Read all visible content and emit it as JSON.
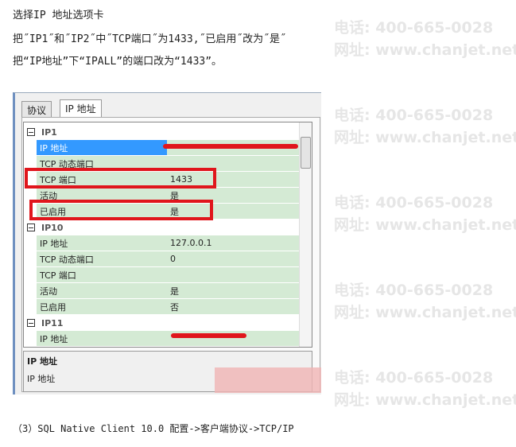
{
  "instructions": [
    "选择IP 地址选项卡",
    "把˝IP1˝和˝IP2˝中˝TCP端口˝为1433,˝已启用˝改为˝是˝",
    "把“IP地址”下“IPALL”的端口改为“1433”。"
  ],
  "tabs": [
    {
      "label": "协议"
    },
    {
      "label": "IP 地址",
      "active": true
    }
  ],
  "groups": [
    {
      "name": "IP1",
      "rows": [
        {
          "k": "IP 地址",
          "v": ""
        },
        {
          "k": "TCP 动态端口",
          "v": ""
        },
        {
          "k": "TCP 端口",
          "v": "1433"
        },
        {
          "k": "活动",
          "v": "是"
        },
        {
          "k": "已启用",
          "v": "是"
        }
      ]
    },
    {
      "name": "IP10",
      "rows": [
        {
          "k": "IP 地址",
          "v": "127.0.0.1"
        },
        {
          "k": "TCP 动态端口",
          "v": "0"
        },
        {
          "k": "TCP 端口",
          "v": ""
        },
        {
          "k": "活动",
          "v": "是"
        },
        {
          "k": "已启用",
          "v": "否"
        }
      ]
    },
    {
      "name": "IP11",
      "rows": [
        {
          "k": "IP 地址",
          "v": ""
        }
      ]
    }
  ],
  "description": {
    "title": "IP 地址",
    "text": "IP 地址"
  },
  "footer": "（3）SQL Native Client 10.0  配置->客户端协议->TCP/IP",
  "watermark": {
    "phone": "电话: 400-665-0028",
    "site": "网址: www.chanjet.net"
  },
  "colors": {
    "highlight": "#e0161c",
    "selection": "#3399ff",
    "row": "#d4ead4"
  }
}
